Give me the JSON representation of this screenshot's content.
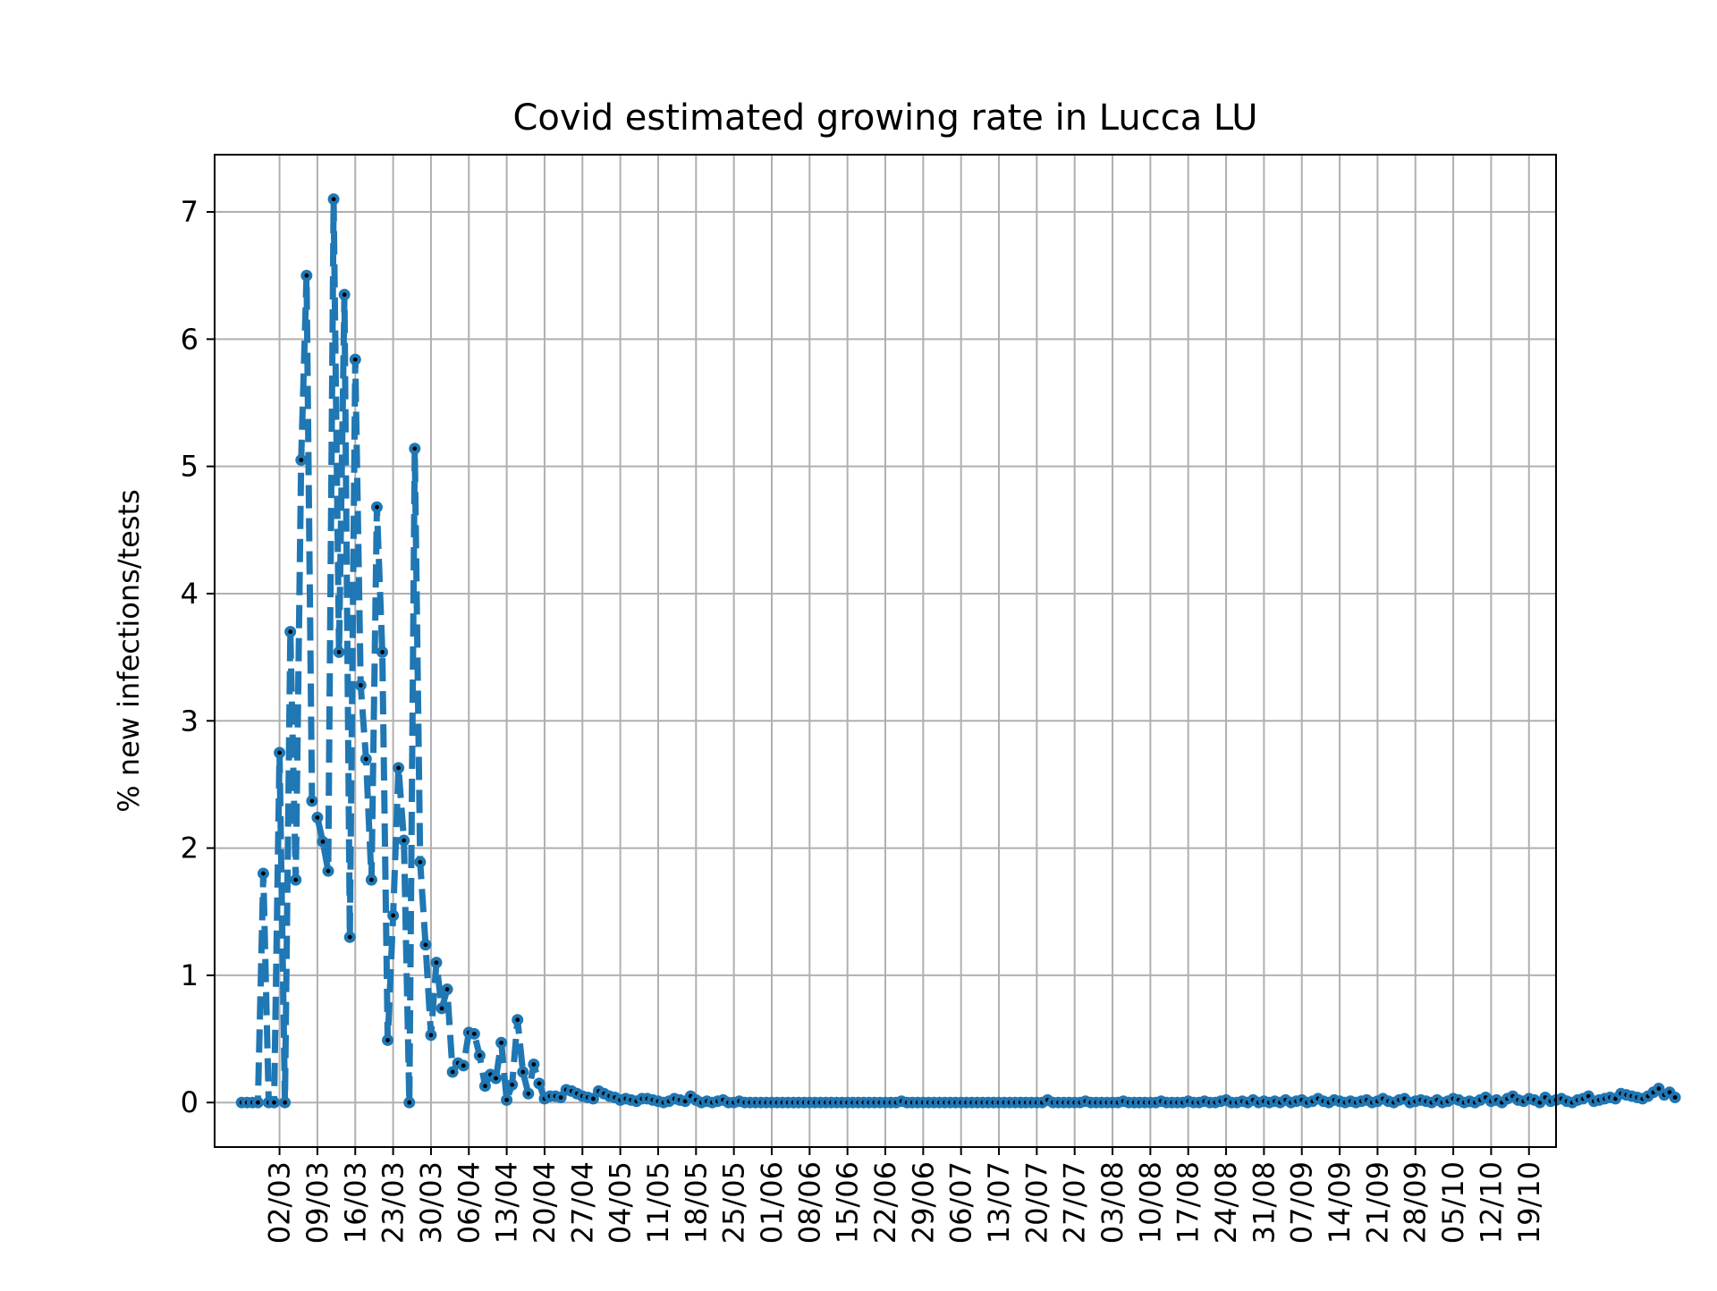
{
  "chart_data": {
    "type": "line",
    "title": "Covid estimated growing rate in Lucca LU",
    "xlabel": "",
    "ylabel": "% new infections/tests",
    "grid": true,
    "line_style": "dashed",
    "marker": "o",
    "color": "#1f77b4",
    "marker_center_color": "#000000",
    "ylim": [
      -0.35,
      7.45
    ],
    "yticks": [
      0,
      1,
      2,
      3,
      4,
      5,
      6,
      7
    ],
    "xlim": [
      "2020-02-19",
      "2020-10-24"
    ],
    "x_tick_labels": [
      "02/03",
      "09/03",
      "16/03",
      "23/03",
      "30/03",
      "06/04",
      "13/04",
      "20/04",
      "27/04",
      "04/05",
      "11/05",
      "18/05",
      "25/05",
      "01/06",
      "08/06",
      "15/06",
      "22/06",
      "29/06",
      "06/07",
      "13/07",
      "20/07",
      "27/07",
      "03/08",
      "10/08",
      "17/08",
      "24/08",
      "31/08",
      "07/09",
      "14/09",
      "21/09",
      "28/09",
      "05/10",
      "12/10",
      "19/10"
    ],
    "x_tick_dates": [
      "2020-03-02",
      "2020-03-09",
      "2020-03-16",
      "2020-03-23",
      "2020-03-30",
      "2020-04-06",
      "2020-04-13",
      "2020-04-20",
      "2020-04-27",
      "2020-05-04",
      "2020-05-11",
      "2020-05-18",
      "2020-05-25",
      "2020-06-01",
      "2020-06-08",
      "2020-06-15",
      "2020-06-22",
      "2020-06-29",
      "2020-07-06",
      "2020-07-13",
      "2020-07-20",
      "2020-07-27",
      "2020-08-03",
      "2020-08-10",
      "2020-08-17",
      "2020-08-24",
      "2020-08-31",
      "2020-09-07",
      "2020-09-14",
      "2020-09-21",
      "2020-09-28",
      "2020-10-05",
      "2020-10-12",
      "2020-10-19"
    ],
    "series": [
      {
        "name": "",
        "x_start": "2020-02-24",
        "x_end": "2020-10-19",
        "x_step_days": 1,
        "values": [
          0.0,
          0.0,
          0.0,
          0.0,
          1.8,
          0.0,
          0.0,
          2.75,
          0.0,
          3.7,
          1.75,
          5.05,
          6.5,
          2.37,
          2.24,
          2.05,
          1.82,
          7.1,
          3.54,
          6.35,
          1.3,
          5.84,
          3.28,
          2.7,
          1.75,
          4.68,
          3.54,
          0.49,
          1.47,
          2.63,
          2.06,
          0.0,
          5.14,
          1.89,
          1.24,
          0.53,
          1.1,
          0.74,
          0.89,
          0.24,
          0.31,
          0.29,
          0.55,
          0.54,
          0.37,
          0.13,
          0.22,
          0.19,
          0.47,
          0.02,
          0.14,
          0.65,
          0.24,
          0.07,
          0.3,
          0.15,
          0.03,
          0.05,
          0.05,
          0.04,
          0.1,
          0.09,
          0.07,
          0.05,
          0.04,
          0.03,
          0.09,
          0.07,
          0.05,
          0.04,
          0.02,
          0.03,
          0.02,
          0.01,
          0.03,
          0.03,
          0.02,
          0.01,
          0.0,
          0.01,
          0.03,
          0.02,
          0.01,
          0.05,
          0.02,
          0.0,
          0.01,
          0.0,
          0.01,
          0.02,
          0.0,
          0.0,
          0.01,
          0.0,
          0.0,
          0.0,
          0.0,
          0.0,
          0.0,
          0.0,
          0.0,
          0.0,
          0.0,
          0.0,
          0.0,
          0.0,
          0.0,
          0.0,
          0.0,
          0.0,
          0.0,
          0.0,
          0.0,
          0.0,
          0.0,
          0.0,
          0.0,
          0.0,
          0.0,
          0.0,
          0.0,
          0.0,
          0.01,
          0.0,
          0.0,
          0.0,
          0.0,
          0.0,
          0.0,
          0.0,
          0.0,
          0.0,
          0.0,
          0.0,
          0.0,
          0.0,
          0.0,
          0.0,
          0.0,
          0.0,
          0.0,
          0.0,
          0.0,
          0.0,
          0.0,
          0.0,
          0.0,
          0.0,
          0.0,
          0.02,
          0.0,
          0.0,
          0.0,
          0.0,
          0.0,
          0.0,
          0.01,
          0.0,
          0.0,
          0.0,
          0.0,
          0.0,
          0.0,
          0.01,
          0.0,
          0.0,
          0.0,
          0.0,
          0.0,
          0.0,
          0.01,
          0.0,
          0.0,
          0.0,
          0.0,
          0.01,
          0.0,
          0.0,
          0.01,
          0.0,
          0.0,
          0.01,
          0.02,
          0.0,
          0.0,
          0.01,
          0.0,
          0.02,
          0.0,
          0.01,
          0.0,
          0.01,
          0.0,
          0.02,
          0.0,
          0.01,
          0.02,
          0.0,
          0.01,
          0.03,
          0.01,
          0.0,
          0.02,
          0.01,
          0.0,
          0.01,
          0.0,
          0.01,
          0.02,
          0.0,
          0.01,
          0.03,
          0.01,
          0.0,
          0.02,
          0.03,
          0.0,
          0.01,
          0.02,
          0.01,
          0.0,
          0.02,
          0.0,
          0.01,
          0.03,
          0.02,
          0.0,
          0.01,
          0.0,
          0.02,
          0.04,
          0.01,
          0.02,
          0.0,
          0.03,
          0.05,
          0.02,
          0.01,
          0.03,
          0.02,
          0.0,
          0.04,
          0.01,
          0.02,
          0.03,
          0.01,
          0.0,
          0.02,
          0.03,
          0.05,
          0.01,
          0.02,
          0.03,
          0.04,
          0.03,
          0.07,
          0.06,
          0.05,
          0.04,
          0.03,
          0.05,
          0.08,
          0.11,
          0.06,
          0.08,
          0.04
        ]
      }
    ]
  }
}
